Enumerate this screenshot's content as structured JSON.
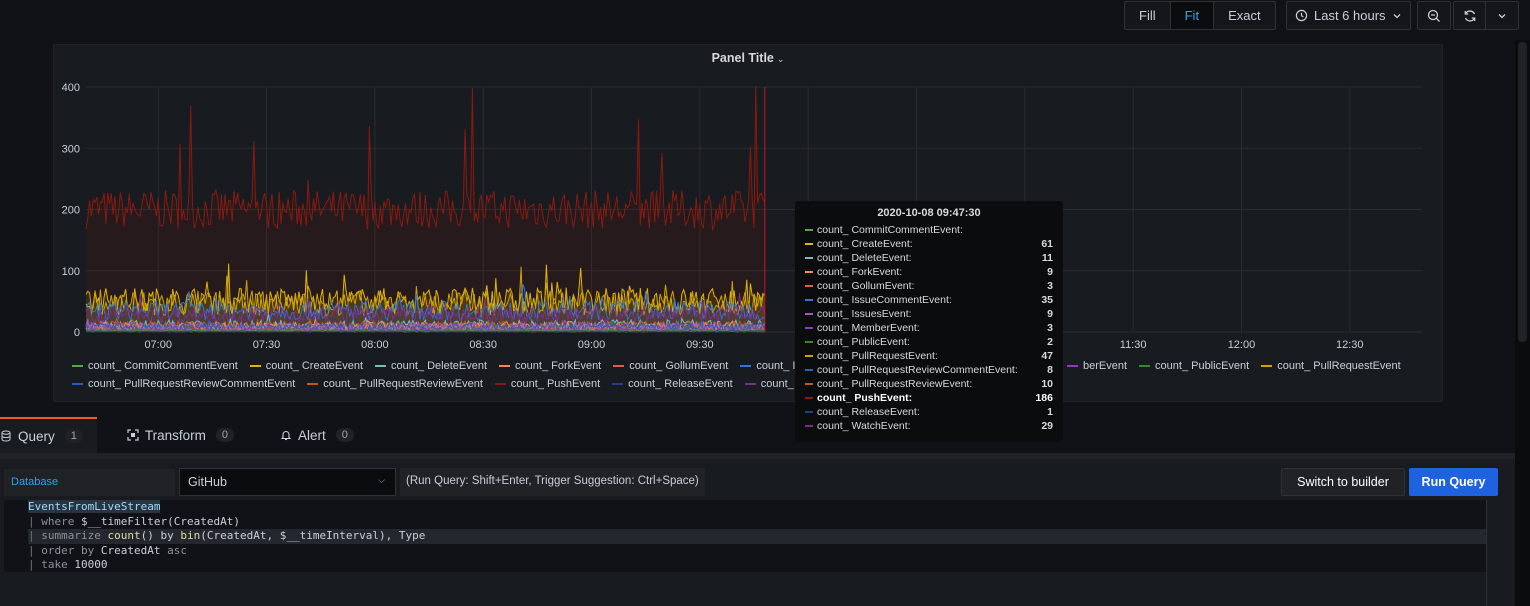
{
  "toolbar": {
    "fill_label": "Fill",
    "fit_label": "Fit",
    "exact_label": "Exact",
    "time_range": "Last 6 hours"
  },
  "panel": {
    "title": "Panel Title"
  },
  "chart_data": {
    "type": "line",
    "title": "Panel Title",
    "ylim": [
      0,
      400
    ],
    "yticks": [
      "0",
      "100",
      "200",
      "300",
      "400"
    ],
    "xticks": [
      "07:00",
      "07:30",
      "08:00",
      "08:30",
      "09:00",
      "09:30",
      "10:00",
      "10:30",
      "11:00",
      "11:30",
      "12:00",
      "12:30"
    ],
    "x_range": [
      "06:40",
      "12:50"
    ],
    "data_end": "09:48",
    "grid": true,
    "legend_position": "bottom",
    "series": [
      {
        "name": "count_ CommitCommentEvent",
        "color": "#56a64b",
        "approx_level": 1
      },
      {
        "name": "count_ CreateEvent",
        "color": "#e0b400",
        "approx_level": 50
      },
      {
        "name": "count_ DeleteEvent",
        "color": "#73bfb8",
        "approx_level": 11
      },
      {
        "name": "count_ ForkEvent",
        "color": "#f2895c",
        "approx_level": 9
      },
      {
        "name": "count_ GollumEvent",
        "color": "#e05a4e",
        "approx_level": 3
      },
      {
        "name": "count_ IssueCommentEvent",
        "color": "#3274d9",
        "approx_level": 35
      },
      {
        "name": "count_ IssuesEvent",
        "color": "#a352cc",
        "approx_level": 9
      },
      {
        "name": "count_ MemberEvent",
        "color": "#8f3bb8",
        "approx_level": 3
      },
      {
        "name": "count_ PublicEvent",
        "color": "#37872d",
        "approx_level": 2
      },
      {
        "name": "count_ PullRequestEvent",
        "color": "#cca300",
        "approx_level": 47
      },
      {
        "name": "count_ PullRequestReviewCommentEvent",
        "color": "#1f60c4",
        "approx_level": 8
      },
      {
        "name": "count_ PullRequestReviewEvent",
        "color": "#c15c17",
        "approx_level": 10
      },
      {
        "name": "count_ PushEvent",
        "color": "#8a1a10",
        "approx_level": 200
      },
      {
        "name": "count_ ReleaseEvent",
        "color": "#1f3f8c",
        "approx_level": 1
      },
      {
        "name": "count_ WatchEvent",
        "color": "#7d2f8a",
        "approx_level": 29
      }
    ]
  },
  "legend_row1": [
    {
      "name": "count_ CommitCommentEvent",
      "color": "#56a64b"
    },
    {
      "name": "count_ CreateEvent",
      "color": "#e0b400"
    },
    {
      "name": "count_ DeleteEvent",
      "color": "#73bfb8"
    },
    {
      "name": "count_ ForkEvent",
      "color": "#f2895c"
    },
    {
      "name": "count_ GollumEvent",
      "color": "#e05a4e"
    },
    {
      "name": "count_ IssueC",
      "color": "#3274d9"
    }
  ],
  "legend_row1_right": [
    {
      "name": "berEvent",
      "color": "#8f3bb8"
    },
    {
      "name": "count_ PublicEvent",
      "color": "#37872d"
    },
    {
      "name": "count_ PullRequestEvent",
      "color": "#cca300"
    }
  ],
  "legend_row2": [
    {
      "name": "count_ PullRequestReviewCommentEvent",
      "color": "#1f60c4"
    },
    {
      "name": "count_ PullRequestReviewEvent",
      "color": "#c15c17"
    },
    {
      "name": "count_ PushEvent",
      "color": "#8a1a10"
    },
    {
      "name": "count_ ReleaseEvent",
      "color": "#1f3f8c"
    },
    {
      "name": "count_ WatchE",
      "color": "#7d2f8a"
    }
  ],
  "tooltip": {
    "time": "2020-10-08 09:47:30",
    "rows": [
      {
        "name": "count_ CommitCommentEvent:",
        "value": "",
        "color": "#56a64b"
      },
      {
        "name": "count_ CreateEvent:",
        "value": "61",
        "color": "#e0b400"
      },
      {
        "name": "count_ DeleteEvent:",
        "value": "11",
        "color": "#73bfb8"
      },
      {
        "name": "count_ ForkEvent:",
        "value": "9",
        "color": "#f2895c"
      },
      {
        "name": "count_ GollumEvent:",
        "value": "3",
        "color": "#e05a4e"
      },
      {
        "name": "count_ IssueCommentEvent:",
        "value": "35",
        "color": "#3274d9"
      },
      {
        "name": "count_ IssuesEvent:",
        "value": "9",
        "color": "#a352cc"
      },
      {
        "name": "count_ MemberEvent:",
        "value": "3",
        "color": "#8f3bb8"
      },
      {
        "name": "count_ PublicEvent:",
        "value": "2",
        "color": "#37872d"
      },
      {
        "name": "count_ PullRequestEvent:",
        "value": "47",
        "color": "#cca300"
      },
      {
        "name": "count_ PullRequestReviewCommentEvent:",
        "value": "8",
        "color": "#1f60c4"
      },
      {
        "name": "count_ PullRequestReviewEvent:",
        "value": "10",
        "color": "#c15c17"
      },
      {
        "name": "count_ PushEvent:",
        "value": "186",
        "color": "#8a1a10",
        "highlight": true
      },
      {
        "name": "count_ ReleaseEvent:",
        "value": "1",
        "color": "#1f3f8c"
      },
      {
        "name": "count_ WatchEvent:",
        "value": "29",
        "color": "#7d2f8a"
      }
    ]
  },
  "tabs": [
    {
      "label": "Query",
      "count": "1"
    },
    {
      "label": "Transform",
      "count": "0"
    },
    {
      "label": "Alert",
      "count": "0"
    }
  ],
  "query_editor": {
    "database_label": "Database",
    "database_value": "GitHub",
    "hint": "(Run Query: Shift+Enter, Trigger Suggestion: Ctrl+Space)",
    "switch_label": "Switch to builder",
    "run_label": "Run Query",
    "code": {
      "l1": "EventsFromLiveStream",
      "l2_kw": "where",
      "l2_rest": " $__timeFilter(CreatedAt)",
      "l3_kw": "summarize",
      "l3_fn1": "count",
      "l3_mid": "() by ",
      "l3_fn2": "bin",
      "l3_rest": "(CreatedAt, $__timeInterval), Type",
      "l4_kw": "order by",
      "l4_mid": " CreatedAt ",
      "l4_kw2": "asc",
      "l5_kw": "take",
      "l5_rest": " 10000"
    }
  }
}
